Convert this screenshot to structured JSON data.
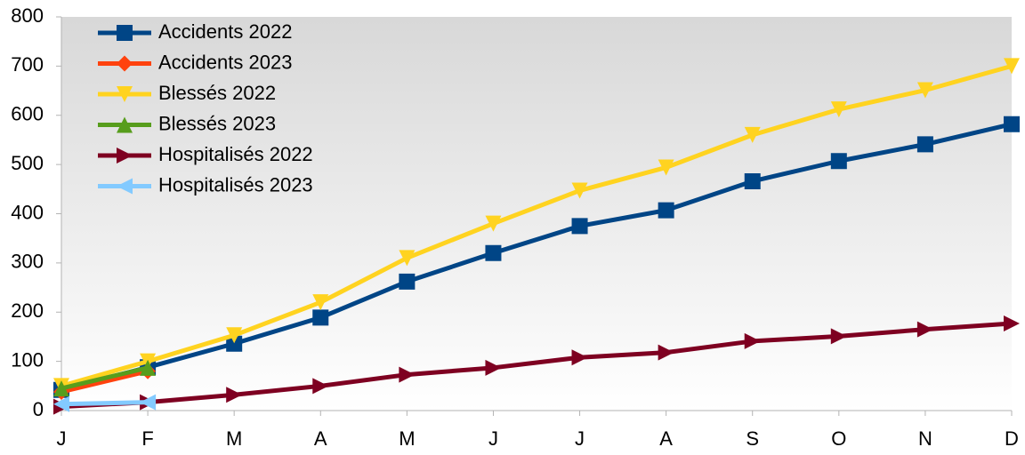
{
  "chart_data": {
    "type": "line",
    "categories": [
      "J",
      "F",
      "M",
      "A",
      "M",
      "J",
      "J",
      "A",
      "S",
      "O",
      "N",
      "D"
    ],
    "series": [
      {
        "name": "Accidents 2022",
        "color": "#004586",
        "marker": "square",
        "values": [
          42,
          88,
          136,
          189,
          262,
          320,
          375,
          407,
          466,
          507,
          541,
          582
        ]
      },
      {
        "name": "Accidents 2023",
        "color": "#ff420e",
        "marker": "diamond",
        "values": [
          38,
          80,
          null,
          null,
          null,
          null,
          null,
          null,
          null,
          null,
          null,
          null
        ]
      },
      {
        "name": "Blessés 2022",
        "color": "#ffd320",
        "marker": "triangle-down",
        "values": [
          50,
          100,
          153,
          220,
          310,
          380,
          447,
          494,
          560,
          612,
          651,
          700
        ]
      },
      {
        "name": "Blessés 2023",
        "color": "#579d1c",
        "marker": "triangle-up",
        "values": [
          45,
          87,
          null,
          null,
          null,
          null,
          null,
          null,
          null,
          null,
          null,
          null
        ]
      },
      {
        "name": "Hospitalisés 2022",
        "color": "#7e0021",
        "marker": "triangle-right",
        "values": [
          8,
          17,
          32,
          50,
          73,
          87,
          108,
          118,
          141,
          151,
          165,
          177
        ]
      },
      {
        "name": "Hospitalisés 2023",
        "color": "#83caff",
        "marker": "triangle-left",
        "values": [
          13,
          17,
          null,
          null,
          null,
          null,
          null,
          null,
          null,
          null,
          null,
          null
        ]
      }
    ],
    "ylim": [
      0,
      800
    ],
    "yticks": [
      0,
      100,
      200,
      300,
      400,
      500,
      600,
      700,
      800
    ],
    "legend": "top-left",
    "grid": false
  }
}
